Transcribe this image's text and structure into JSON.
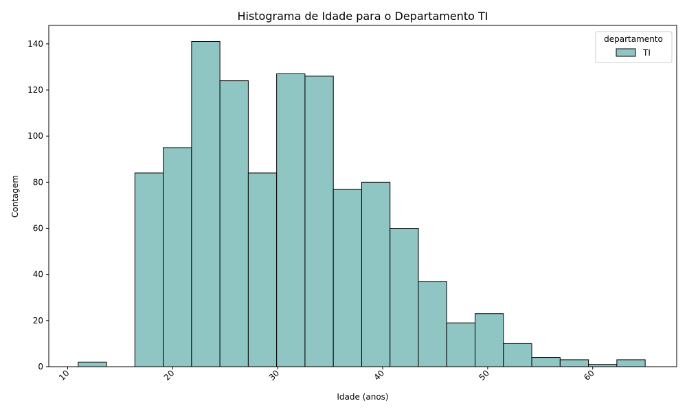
{
  "chart_data": {
    "type": "bar",
    "title": "Histograma de Idade para o Departamento TI",
    "xlabel": "Idade (anos)",
    "ylabel": "Contagem",
    "xlim": [
      8.2,
      68.0
    ],
    "ylim": [
      0,
      148
    ],
    "x_ticks": [
      10,
      20,
      30,
      40,
      50,
      60
    ],
    "y_ticks": [
      0,
      20,
      40,
      60,
      80,
      100,
      120,
      140
    ],
    "bins": [
      {
        "start": 11.0,
        "end": 13.7,
        "count": 2
      },
      {
        "start": 13.7,
        "end": 16.4,
        "count": 0
      },
      {
        "start": 16.4,
        "end": 19.1,
        "count": 84
      },
      {
        "start": 19.1,
        "end": 21.8,
        "count": 95
      },
      {
        "start": 21.8,
        "end": 24.5,
        "count": 141
      },
      {
        "start": 24.5,
        "end": 27.2,
        "count": 124
      },
      {
        "start": 27.2,
        "end": 29.9,
        "count": 84
      },
      {
        "start": 29.9,
        "end": 32.6,
        "count": 127
      },
      {
        "start": 32.6,
        "end": 35.3,
        "count": 126
      },
      {
        "start": 35.3,
        "end": 38.0,
        "count": 77
      },
      {
        "start": 38.0,
        "end": 40.7,
        "count": 80
      },
      {
        "start": 40.7,
        "end": 43.4,
        "count": 60
      },
      {
        "start": 43.4,
        "end": 46.1,
        "count": 37
      },
      {
        "start": 46.1,
        "end": 48.8,
        "count": 19
      },
      {
        "start": 48.8,
        "end": 51.5,
        "count": 23
      },
      {
        "start": 51.5,
        "end": 54.2,
        "count": 10
      },
      {
        "start": 54.2,
        "end": 56.9,
        "count": 4
      },
      {
        "start": 56.9,
        "end": 59.6,
        "count": 3
      },
      {
        "start": 59.6,
        "end": 62.3,
        "count": 1
      },
      {
        "start": 62.3,
        "end": 65.0,
        "count": 3
      }
    ],
    "legend": {
      "title": "departamento",
      "entries": [
        {
          "label": "TI",
          "color": "#8fc5c3"
        }
      ],
      "placement": "top-right"
    },
    "bar_color": "#8fc5c3",
    "edge_color": "#000000",
    "grid": false
  }
}
